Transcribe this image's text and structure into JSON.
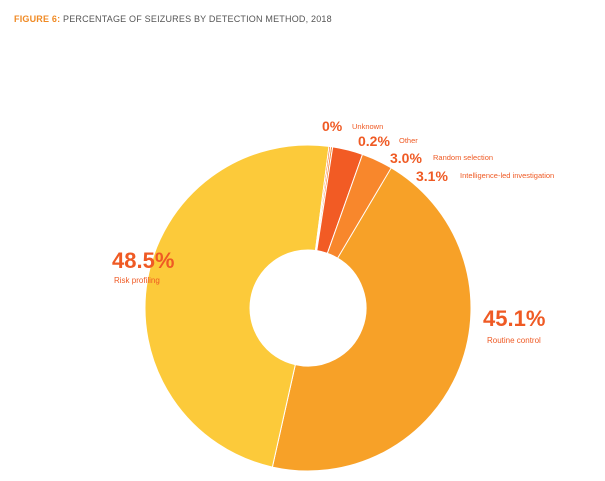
{
  "header": {
    "figure_label": "FIGURE 6:",
    "title": "PERCENTAGE OF SEIZURES BY DETECTION METHOD, 2018"
  },
  "chart_data": {
    "type": "pie",
    "title": "PERCENTAGE OF SEIZURES BY DETECTION METHOD, 2018",
    "donut": true,
    "slices": [
      {
        "label": "Routine control",
        "value": 45.1,
        "value_label": "45.1%",
        "color": "#f7a128"
      },
      {
        "label": "Risk profiling",
        "value": 48.5,
        "value_label": "48.5%",
        "color": "#fcca3a"
      },
      {
        "label": "Unknown",
        "value": 0,
        "value_label": "0%",
        "color": "#f26a2a"
      },
      {
        "label": "Other",
        "value": 0.2,
        "value_label": "0.2%",
        "color": "#f5812c"
      },
      {
        "label": "Random selection",
        "value": 3.0,
        "value_label": "3.0%",
        "color": "#f25b24"
      },
      {
        "label": "Intelligence-led investigation",
        "value": 3.1,
        "value_label": "3.1%",
        "color": "#f8872c"
      }
    ],
    "label_color": "#ef5a24"
  }
}
